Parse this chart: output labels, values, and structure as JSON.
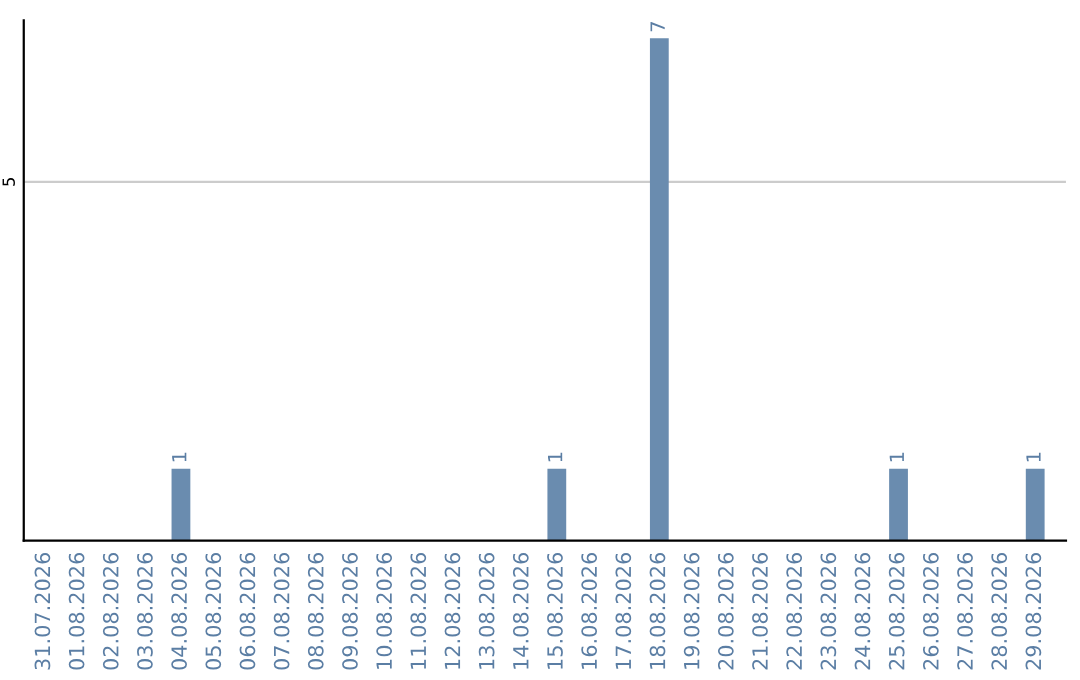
{
  "chart_data": {
    "type": "bar",
    "categories": [
      "31.07.2026",
      "01.08.2026",
      "02.08.2026",
      "03.08.2026",
      "04.08.2026",
      "05.08.2026",
      "06.08.2026",
      "07.08.2026",
      "08.08.2026",
      "09.08.2026",
      "10.08.2026",
      "11.08.2026",
      "12.08.2026",
      "13.08.2026",
      "14.08.2026",
      "15.08.2026",
      "16.08.2026",
      "17.08.2026",
      "18.08.2026",
      "19.08.2026",
      "20.08.2026",
      "21.08.2026",
      "22.08.2026",
      "23.08.2026",
      "24.08.2026",
      "25.08.2026",
      "26.08.2026",
      "27.08.2026",
      "28.08.2026",
      "29.08.2026"
    ],
    "values": [
      0,
      0,
      0,
      0,
      1,
      0,
      0,
      0,
      0,
      0,
      0,
      0,
      0,
      0,
      0,
      1,
      0,
      0,
      7,
      0,
      0,
      0,
      0,
      0,
      0,
      1,
      0,
      0,
      0,
      1
    ],
    "value_labels": [
      null,
      null,
      null,
      null,
      "1",
      null,
      null,
      null,
      null,
      null,
      null,
      null,
      null,
      null,
      null,
      "1",
      null,
      null,
      "7",
      null,
      null,
      null,
      null,
      null,
      null,
      "1",
      null,
      null,
      null,
      "1"
    ],
    "color": "#6a8caf",
    "ylim": [
      0,
      7.25
    ],
    "yticks": [
      5
    ],
    "grid": "y"
  }
}
